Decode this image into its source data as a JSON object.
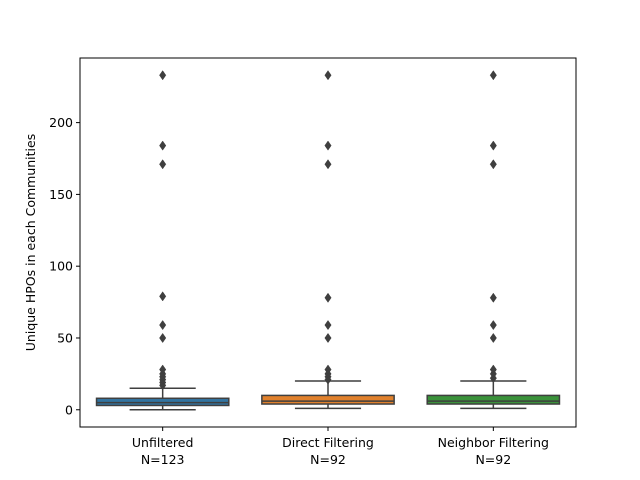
{
  "chart_data": {
    "type": "box",
    "title": "",
    "xlabel": "",
    "ylabel": "Unique HPOs in each Communities",
    "ylim": [
      -12,
      245
    ],
    "yticks": [
      0,
      50,
      100,
      150,
      200
    ],
    "grid": false,
    "legend": "none",
    "categories": [
      {
        "label": "Unfiltered",
        "sublabel": "N=123"
      },
      {
        "label": "Direct Filtering",
        "sublabel": "N=92"
      },
      {
        "label": "Neighbor Filtering",
        "sublabel": "N=92"
      }
    ],
    "boxes": [
      {
        "color": "#3274a1",
        "whisker_low": 0,
        "q1": 3,
        "median": 5,
        "q3": 8,
        "whisker_high": 15,
        "outliers": [
          17,
          19,
          21,
          23,
          25,
          28,
          50,
          59,
          79,
          171,
          184,
          233
        ]
      },
      {
        "color": "#e1812c",
        "whisker_low": 1,
        "q1": 4,
        "median": 6,
        "q3": 10,
        "whisker_high": 20,
        "outliers": [
          21,
          23,
          25,
          28,
          50,
          59,
          78,
          171,
          184,
          233
        ]
      },
      {
        "color": "#3a923a",
        "whisker_low": 1,
        "q1": 4,
        "median": 6,
        "q3": 10,
        "whisker_high": 20,
        "outliers": [
          22,
          25,
          28,
          50,
          59,
          78,
          171,
          184,
          233
        ]
      }
    ]
  }
}
